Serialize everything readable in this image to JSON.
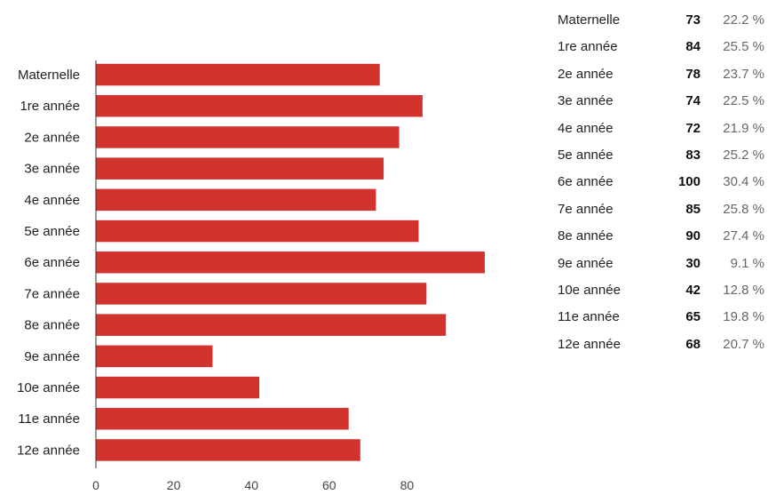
{
  "chart_data": {
    "type": "bar",
    "orientation": "horizontal",
    "categories": [
      "Maternelle",
      "1re année",
      "2e année",
      "3e année",
      "4e année",
      "5e année",
      "6e année",
      "7e année",
      "8e année",
      "9e année",
      "10e année",
      "11e année",
      "12e année"
    ],
    "values": [
      73,
      84,
      78,
      74,
      72,
      83,
      100,
      85,
      90,
      30,
      42,
      65,
      68
    ],
    "percentages": [
      "22.2 %",
      "25.5 %",
      "23.7 %",
      "22.5 %",
      "21.9 %",
      "25.2 %",
      "30.4 %",
      "25.8 %",
      "27.4 %",
      "9.1 %",
      "12.8 %",
      "19.8 %",
      "20.7 %"
    ],
    "xticks": [
      "0",
      "20",
      "40",
      "60",
      "80"
    ],
    "xlim": [
      0,
      100
    ],
    "grid": false,
    "legend": "none",
    "bar_color": "#d2332e"
  }
}
